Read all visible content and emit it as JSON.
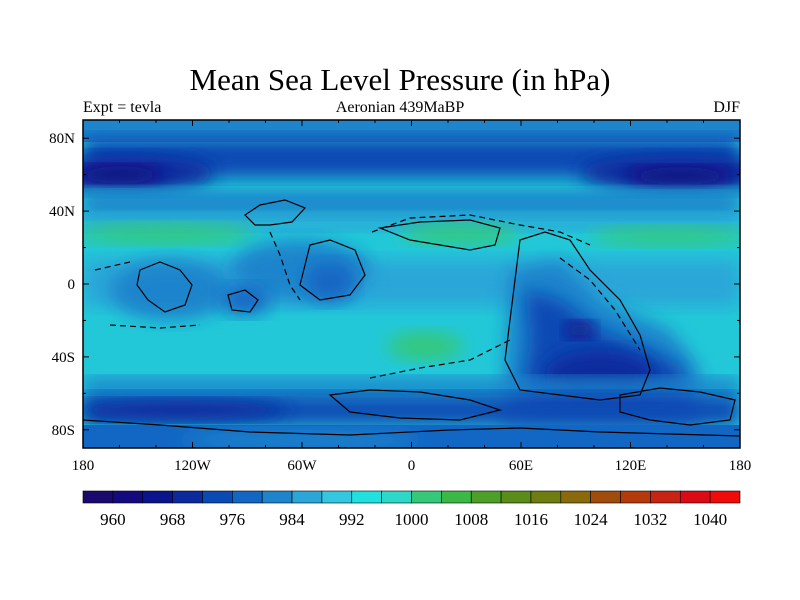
{
  "header": {
    "title": "Mean Sea Level Pressure (in hPa)",
    "left_label": "Expt = tevla",
    "center_label": "Aeronian 439MaBP",
    "right_label": "DJF"
  },
  "map": {
    "projection": "cylindrical-equidistant",
    "lon_range": [
      -180,
      180
    ],
    "lat_range": [
      -90,
      90
    ],
    "lon_ticks": [
      "180",
      "120W",
      "60W",
      "0",
      "60E",
      "120E",
      "180"
    ],
    "lat_ticks": [
      "80N",
      "40N",
      "0",
      "40S",
      "80S"
    ]
  },
  "colorbar": {
    "levels": [
      960,
      964,
      968,
      972,
      976,
      980,
      984,
      988,
      992,
      996,
      1000,
      1004,
      1008,
      1012,
      1016,
      1020,
      1024,
      1028,
      1032,
      1036,
      1040
    ],
    "labels": [
      "960",
      "968",
      "976",
      "984",
      "992",
      "1000",
      "1008",
      "1016",
      "1024",
      "1032",
      "1040"
    ],
    "colors": [
      "#1a0a6e",
      "#140a80",
      "#0a148c",
      "#0a2a9e",
      "#0a4ab4",
      "#1266c4",
      "#1e84cc",
      "#2aa6d8",
      "#34c8e0",
      "#20e0e0",
      "#2ed8c8",
      "#34c878",
      "#3cb846",
      "#4ca028",
      "#5a8c18",
      "#6e7c10",
      "#8a6a0a",
      "#a04c0a",
      "#b43a0a",
      "#c82414",
      "#dc0a14",
      "#f00a0a"
    ]
  }
}
